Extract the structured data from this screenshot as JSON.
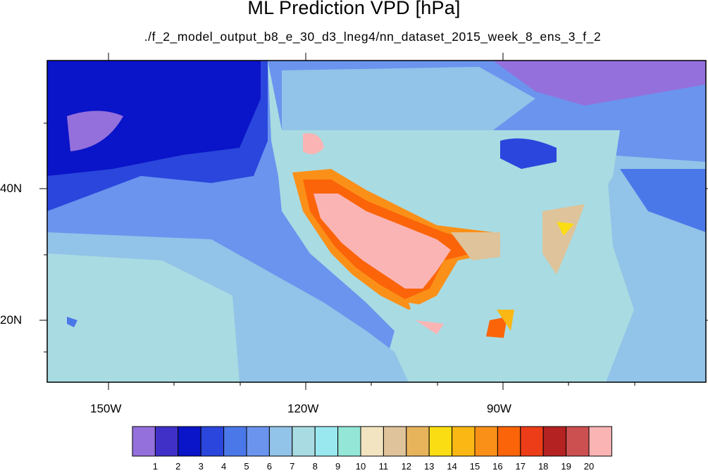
{
  "title": "ML Prediction VPD [hPa]",
  "subtitle": "./f_2_model_output_b8_e_30_d3_lneg4/nn_dataset_2015_week_8_ens_3_f_2",
  "lon_labels": [
    "150W",
    "120W",
    "90W"
  ],
  "lat_labels": [
    "40N",
    "20N"
  ],
  "colorbar": {
    "labels": [
      "1",
      "2",
      "3",
      "4",
      "5",
      "6",
      "7",
      "8",
      "9",
      "10",
      "11",
      "12",
      "13",
      "14",
      "15",
      "16",
      "17",
      "18",
      "19",
      "20"
    ],
    "colors": [
      "#9470dc",
      "#4030c8",
      "#0a14c8",
      "#2a46dc",
      "#4b78e8",
      "#6a94ee",
      "#92c3e8",
      "#a9dbe2",
      "#9ae8ef",
      "#94e6d6",
      "#f2e4c0",
      "#dfc39a",
      "#e7b45c",
      "#fbdd14",
      "#fbb814",
      "#fb9018",
      "#fb6408",
      "#ec3c18",
      "#b42222",
      "#cc5050",
      "#fbb4b4"
    ]
  },
  "colors": {
    "ocean_pacific": "#6a94ee",
    "ocean_deep": "#2a46dc",
    "land_moist": "#92c3e8",
    "land_mid": "#a9dbe2",
    "arid": "#fbb4b4",
    "arid_edge": "#fb6408"
  }
}
